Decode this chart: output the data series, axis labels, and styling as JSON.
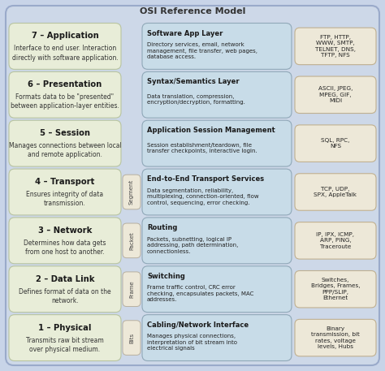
{
  "title": "OSI Reference Model",
  "fig_bg": "#c8d4e8",
  "outer_bg": "#cdd8e8",
  "outer_edge": "#9aaaca",
  "left_bg": "#e8edd8",
  "left_edge": "#b8c4a0",
  "mid_bg": "#c8dce8",
  "mid_edge": "#90a8b8",
  "pdu_bg": "#ede8d8",
  "pdu_edge": "#b8b0a0",
  "right_bg": "#ede8d8",
  "right_edge": "#c0b090",
  "layers": [
    {
      "num": 7,
      "name": "Application",
      "desc": "Interface to end user. Interaction\ndirectly with software application.",
      "pdu_label": null,
      "middle_title": "Software App Layer",
      "middle_desc": "Directory services, email, network\nmanagement, file transfer, web pages,\ndatabase access.",
      "right_text": "FTP, HTTP,\nWWW, SMTP,\nTELNET, DNS,\nTFTP, NFS"
    },
    {
      "num": 6,
      "name": "Presentation",
      "desc": "Formats data to be \"presented\"\nbetween application-layer entities.",
      "pdu_label": null,
      "middle_title": "Syntax/Semantics Layer",
      "middle_desc": "Data translation, compression,\nencryption/decryption, formatting.",
      "right_text": "ASCII, JPEG,\nMPEG, GIF,\nMIDI"
    },
    {
      "num": 5,
      "name": "Session",
      "desc": "Manages connections between local\nand remote application.",
      "pdu_label": null,
      "middle_title": "Application Session Management",
      "middle_desc": "Session establishment/teardown, file\ntransfer checkpoints, interactive login.",
      "right_text": "SQL, RPC,\nNFS"
    },
    {
      "num": 4,
      "name": "Transport",
      "desc": "Ensures integrity of data\ntransmission.",
      "pdu_label": "Segment",
      "middle_title": "End-to-End Transport Services",
      "middle_desc": "Data segmentation, reliability,\nmultiplexing, connection-oriented, flow\ncontrol, sequencing, error checking.",
      "right_text": "TCP, UDP,\nSPX, AppleTalk"
    },
    {
      "num": 3,
      "name": "Network",
      "desc": "Determines how data gets\nfrom one host to another.",
      "pdu_label": "Packet",
      "middle_title": "Routing",
      "middle_desc": "Packets, subnetting, logical IP\naddressing, path determination,\nconnectionless.",
      "right_text": "IP, IPX, ICMP,\nARP, PING,\nTraceroute"
    },
    {
      "num": 2,
      "name": "Data Link",
      "desc": "Defines format of data on the\nnetwork.",
      "pdu_label": "Frame",
      "middle_title": "Switching",
      "middle_desc": "Frame traffic control, CRC error\nchecking, encapsulates packets, MAC\naddresses.",
      "right_text": "Switches,\nBridges, Frames,\nPPP/SLIP,\nEthernet"
    },
    {
      "num": 1,
      "name": "Physical",
      "desc": "Transmits raw bit stream\nover physical medium.",
      "pdu_label": "Bits",
      "middle_title": "Cabling/Network Interface",
      "middle_desc": "Manages physical connections,\ninterpretation of bit stream into\nelectrical signals",
      "right_text": "Binary\ntransmission, bit\nrates, voltage\nlevels, Hubs"
    }
  ]
}
